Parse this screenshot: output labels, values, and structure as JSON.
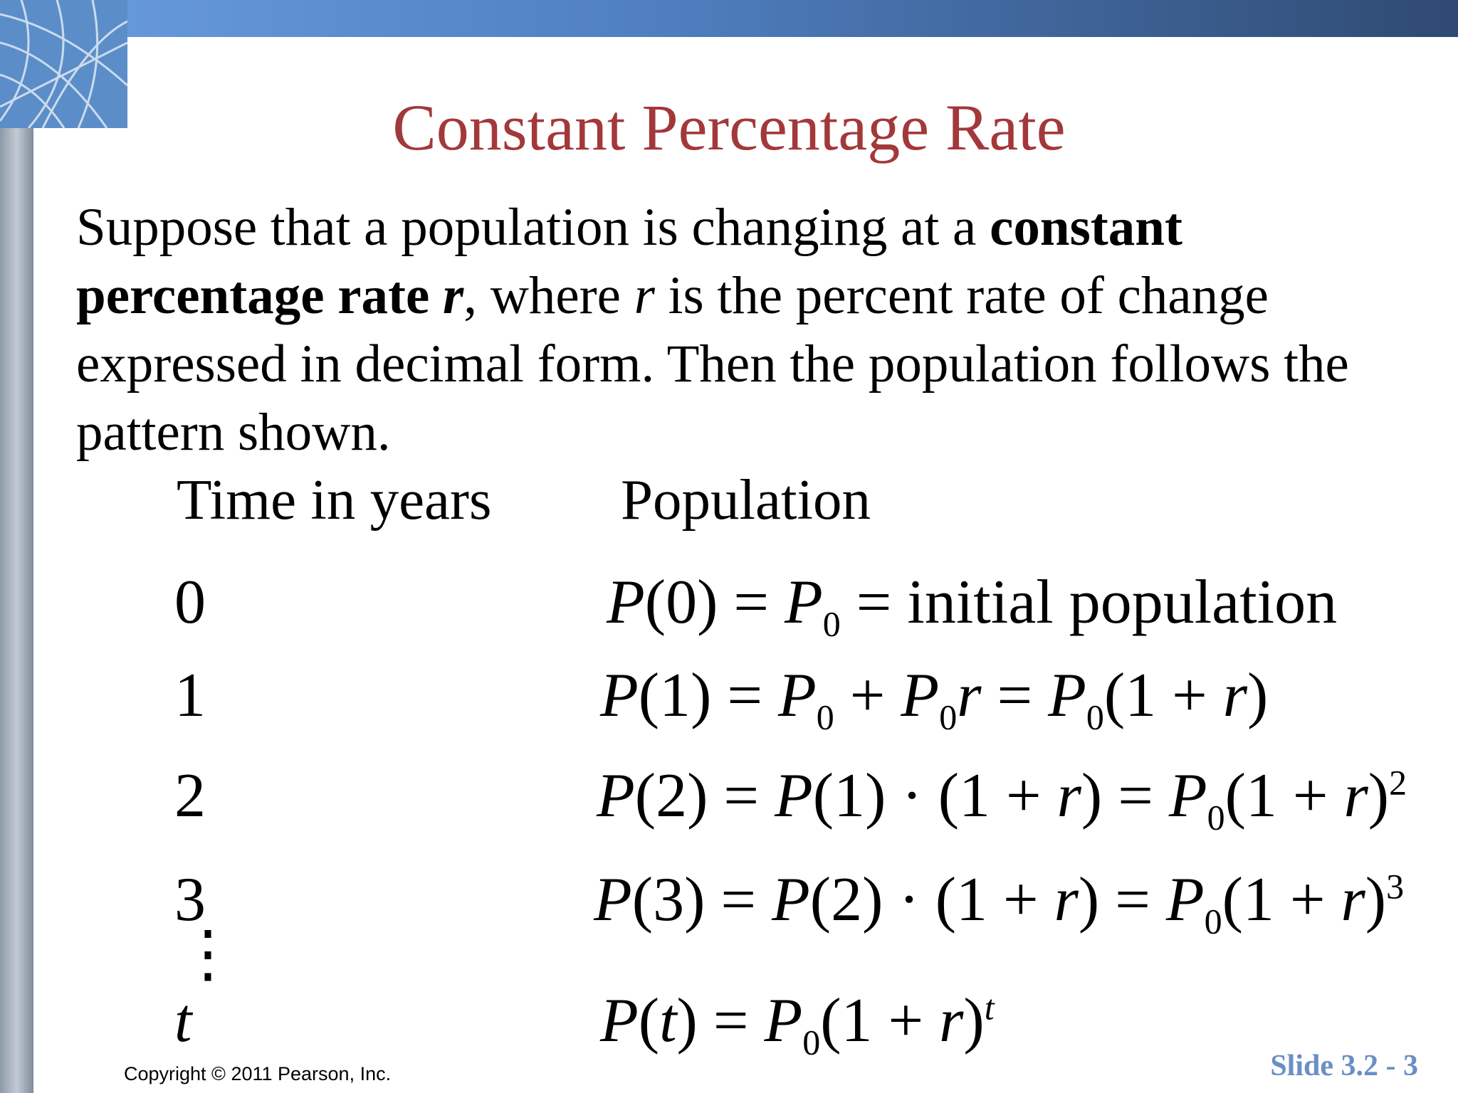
{
  "slide": {
    "title": "Constant Percentage Rate",
    "paragraph": [
      {
        "text": "Suppose that a population is changing at a ",
        "style": "normal"
      },
      {
        "text": "constant percentage rate ",
        "style": "bold"
      },
      {
        "text": "r",
        "style": "bold-italic"
      },
      {
        "text": ", where ",
        "style": "normal"
      },
      {
        "text": "r",
        "style": "italic"
      },
      {
        "text": " is the percent rate of change expressed in decimal form. Then the population follows the pattern shown.",
        "style": "normal"
      }
    ],
    "table": {
      "headers": [
        "Time in years",
        "Population"
      ],
      "rows": [
        {
          "time": "0",
          "formula": [
            {
              "i": "P"
            },
            "(0) = ",
            {
              "i": "P"
            },
            {
              "sub": "0"
            },
            " = initial population"
          ]
        },
        {
          "time": "1",
          "formula": [
            {
              "i": "P"
            },
            "(1) = ",
            {
              "i": "P"
            },
            {
              "sub": "0"
            },
            " + ",
            {
              "i": "P"
            },
            {
              "sub": "0"
            },
            {
              "i": "r"
            },
            " = ",
            {
              "i": "P"
            },
            {
              "sub": "0"
            },
            "(1 + ",
            {
              "i": "r"
            },
            ")"
          ]
        },
        {
          "time": "2",
          "formula": [
            {
              "i": "P"
            },
            "(2) = ",
            {
              "i": "P"
            },
            "(1) · (1 + ",
            {
              "i": "r"
            },
            ") = ",
            {
              "i": "P"
            },
            {
              "sub": "0"
            },
            "(1 + ",
            {
              "i": "r"
            },
            ")",
            {
              "sup": "2"
            }
          ]
        },
        {
          "time": "3",
          "formula": [
            {
              "i": "P"
            },
            "(3) = ",
            {
              "i": "P"
            },
            "(2) · (1 + ",
            {
              "i": "r"
            },
            ") = ",
            {
              "i": "P"
            },
            {
              "sub": "0"
            },
            "(1 + ",
            {
              "i": "r"
            },
            ")",
            {
              "sup": "3"
            }
          ]
        },
        {
          "time": "t",
          "formula": [
            {
              "i": "P"
            },
            "(",
            {
              "i": "t"
            },
            ") = ",
            {
              "i": "P"
            },
            {
              "sub": "0"
            },
            "(1 + ",
            {
              "i": "r"
            },
            ")",
            {
              "sup": "t"
            }
          ]
        }
      ],
      "ellipsis": "⋮"
    },
    "copyright": "Copyright © 2011 Pearson, Inc.",
    "slide_number": "Slide 3.2 - 3"
  }
}
